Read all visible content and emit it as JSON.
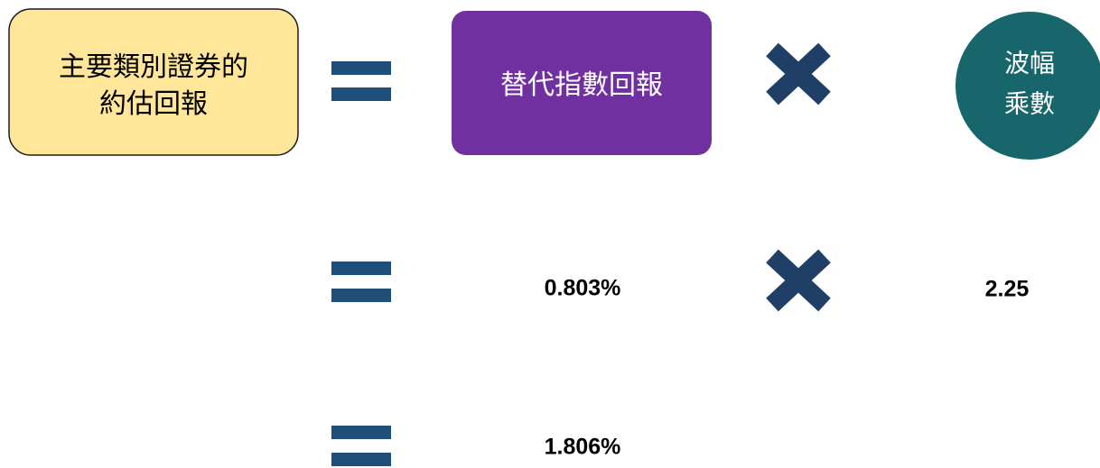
{
  "formula": {
    "estimated_return": {
      "lines": [
        "主要類別證券的",
        "約估回報"
      ]
    },
    "proxy_index_return": {
      "label": "替代指數回報"
    },
    "volatility_multiplier": {
      "lines": [
        "波幅",
        "乘數"
      ]
    },
    "row2": {
      "proxy_value": "0.803%",
      "multiplier_value": "2.25"
    },
    "row3": {
      "result": "1.806%"
    }
  }
}
